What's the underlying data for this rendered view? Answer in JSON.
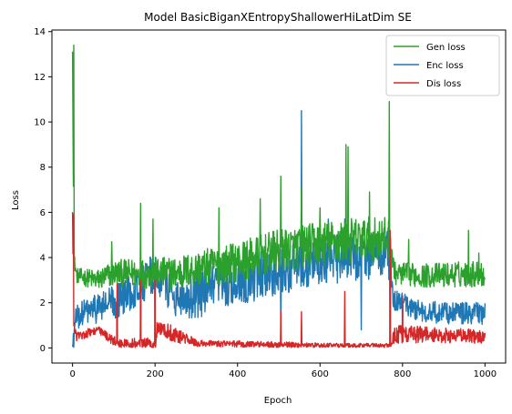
{
  "chart_data": {
    "type": "line",
    "title": "Model BasicBiganXEntropyShallowerHiLatDim SE",
    "xlabel": "Epoch",
    "ylabel": "Loss",
    "xlim": [
      -50,
      1050
    ],
    "ylim": [
      -0.67,
      14.07
    ],
    "xticks": [
      0,
      200,
      400,
      600,
      800,
      1000
    ],
    "yticks": [
      0,
      2,
      4,
      6,
      8,
      10,
      12,
      14
    ],
    "grid": false,
    "legend_position": "top-right",
    "series": [
      {
        "name": "Gen loss",
        "color": "#2ca02c",
        "baseline": [
          [
            0,
            13.4
          ],
          [
            3,
            4.0
          ],
          [
            10,
            3.2
          ],
          [
            60,
            3.0
          ],
          [
            100,
            3.3
          ],
          [
            200,
            3.3
          ],
          [
            250,
            3.3
          ],
          [
            300,
            3.5
          ],
          [
            400,
            3.8
          ],
          [
            500,
            4.3
          ],
          [
            600,
            4.6
          ],
          [
            700,
            4.8
          ],
          [
            770,
            4.8
          ],
          [
            780,
            3.3
          ],
          [
            850,
            3.2
          ],
          [
            1000,
            3.3
          ]
        ],
        "amplitude": [
          [
            0,
            0.3
          ],
          [
            100,
            0.6
          ],
          [
            200,
            0.7
          ],
          [
            400,
            0.9
          ],
          [
            600,
            1.0
          ],
          [
            770,
            1.0
          ],
          [
            780,
            0.5
          ],
          [
            1000,
            0.6
          ]
        ],
        "spikes": [
          [
            3,
            13.4
          ],
          [
            95,
            4.7
          ],
          [
            165,
            6.4
          ],
          [
            195,
            5.7
          ],
          [
            355,
            6.2
          ],
          [
            455,
            6.6
          ],
          [
            505,
            7.6
          ],
          [
            555,
            7.1
          ],
          [
            600,
            6.2
          ],
          [
            663,
            9.0
          ],
          [
            668,
            8.9
          ],
          [
            720,
            6.9
          ],
          [
            768,
            10.9
          ],
          [
            815,
            4.8
          ],
          [
            960,
            5.2
          ],
          [
            985,
            4.2
          ]
        ]
      },
      {
        "name": "Enc loss",
        "color": "#1f77b4",
        "baseline": [
          [
            0,
            0.0
          ],
          [
            8,
            1.3
          ],
          [
            30,
            1.6
          ],
          [
            100,
            2.0
          ],
          [
            150,
            2.6
          ],
          [
            200,
            3.3
          ],
          [
            250,
            2.3
          ],
          [
            300,
            2.3
          ],
          [
            400,
            3.0
          ],
          [
            500,
            3.4
          ],
          [
            600,
            3.9
          ],
          [
            700,
            4.0
          ],
          [
            765,
            4.2
          ],
          [
            780,
            2.1
          ],
          [
            850,
            1.6
          ],
          [
            1000,
            1.5
          ]
        ],
        "amplitude": [
          [
            0,
            0.5
          ],
          [
            100,
            0.8
          ],
          [
            200,
            0.9
          ],
          [
            400,
            1.1
          ],
          [
            600,
            1.1
          ],
          [
            770,
            1.0
          ],
          [
            780,
            0.5
          ],
          [
            1000,
            0.5
          ]
        ],
        "spikes": [
          [
            555,
            10.5
          ],
          [
            765,
            5.3
          ],
          [
            620,
            5.7
          ],
          [
            660,
            5.7
          ]
        ],
        "dips": [
          [
            108,
            0.3
          ],
          [
            165,
            0.6
          ],
          [
            200,
            0.4
          ],
          [
            505,
            0.6
          ],
          [
            555,
            0.6
          ],
          [
            660,
            0.3
          ],
          [
            700,
            0.8
          ],
          [
            770,
            0.6
          ],
          [
            800,
            0.7
          ]
        ]
      },
      {
        "name": "Dis loss",
        "color": "#d62728",
        "baseline": [
          [
            0,
            5.9
          ],
          [
            3,
            1.0
          ],
          [
            10,
            0.5
          ],
          [
            60,
            0.8
          ],
          [
            110,
            0.2
          ],
          [
            200,
            0.15
          ],
          [
            205,
            0.9
          ],
          [
            250,
            0.6
          ],
          [
            300,
            0.2
          ],
          [
            500,
            0.15
          ],
          [
            600,
            0.1
          ],
          [
            770,
            0.1
          ],
          [
            780,
            0.6
          ],
          [
            850,
            0.6
          ],
          [
            1000,
            0.5
          ]
        ],
        "amplitude": [
          [
            0,
            0.2
          ],
          [
            100,
            0.2
          ],
          [
            200,
            0.3
          ],
          [
            250,
            0.4
          ],
          [
            300,
            0.15
          ],
          [
            770,
            0.1
          ],
          [
            780,
            0.4
          ],
          [
            1000,
            0.3
          ]
        ],
        "spikes": [
          [
            2,
            5.9
          ],
          [
            108,
            2.8
          ],
          [
            165,
            3.0
          ],
          [
            200,
            3.0
          ],
          [
            505,
            1.6
          ],
          [
            555,
            1.6
          ],
          [
            660,
            2.5
          ],
          [
            770,
            5.2
          ],
          [
            800,
            2.3
          ]
        ]
      }
    ]
  }
}
